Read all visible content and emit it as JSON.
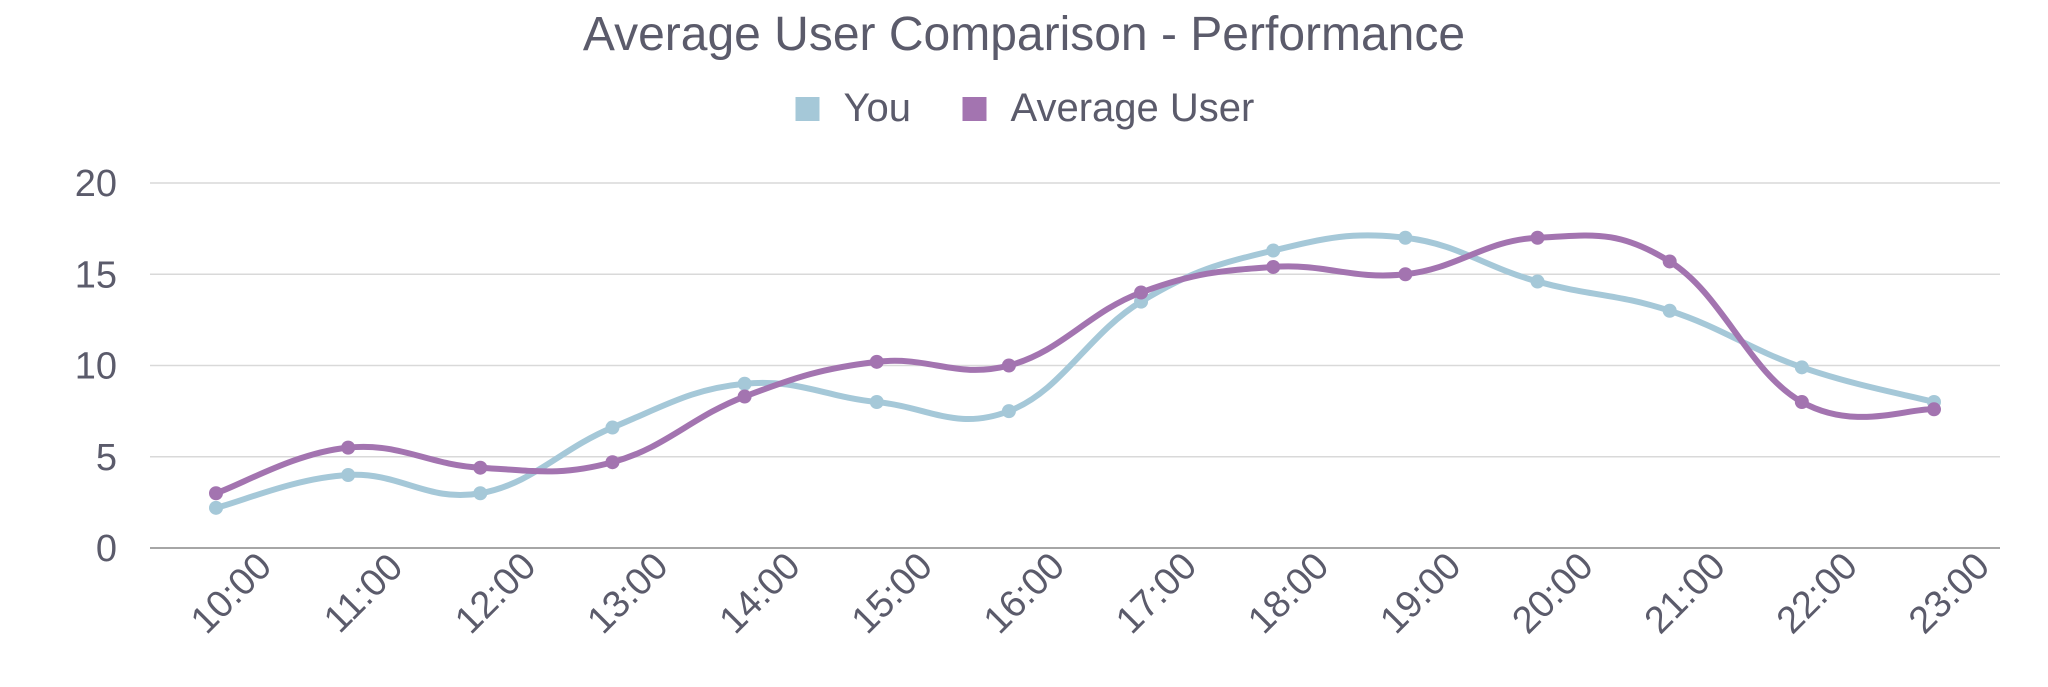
{
  "chart_data": {
    "type": "line",
    "title": "Average User Comparison - Performance",
    "xlabel": "",
    "ylabel": "",
    "categories": [
      "10:00",
      "11:00",
      "12:00",
      "13:00",
      "14:00",
      "15:00",
      "16:00",
      "17:00",
      "18:00",
      "19:00",
      "20:00",
      "21:00",
      "22:00",
      "23:00"
    ],
    "series": [
      {
        "name": "You",
        "color": "#a5c8d8",
        "values": [
          2.2,
          4.0,
          3.0,
          6.6,
          9.0,
          8.0,
          7.5,
          13.5,
          16.3,
          17.0,
          14.6,
          13.0,
          9.9,
          8.0
        ]
      },
      {
        "name": "Average User",
        "color": "#a374b0",
        "values": [
          3.0,
          5.5,
          4.4,
          4.7,
          8.3,
          10.2,
          10.0,
          14.0,
          15.4,
          15.0,
          17.0,
          15.7,
          8.0,
          7.6
        ]
      }
    ],
    "ylim": [
      0,
      20
    ],
    "yticks": [
      0,
      5,
      10,
      15,
      20
    ],
    "grid": true,
    "smooth": true,
    "legend_position": "top-center",
    "text_color": "#5b5b6b",
    "grid_color": "#d9d9d9",
    "axis_color": "#888888"
  }
}
